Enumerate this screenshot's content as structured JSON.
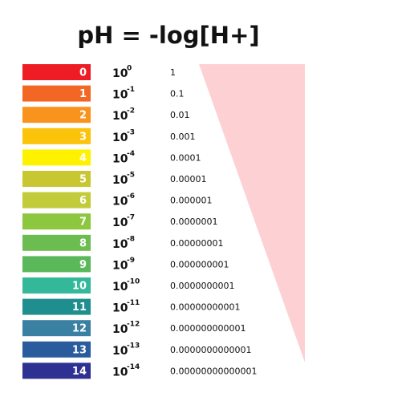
{
  "title": "pH = -log[H+]",
  "rows": [
    {
      "ph": "0",
      "color": "#ee1c25",
      "base": "10",
      "exponent": "0",
      "concentration": "1"
    },
    {
      "ph": "1",
      "color": "#f26724",
      "base": "10",
      "exponent": "-1",
      "concentration": "0.1"
    },
    {
      "ph": "2",
      "color": "#f8931d",
      "base": "10",
      "exponent": "-2",
      "concentration": "0.01"
    },
    {
      "ph": "3",
      "color": "#fcc30b",
      "base": "10",
      "exponent": "-3",
      "concentration": "0.001"
    },
    {
      "ph": "4",
      "color": "#fff200",
      "base": "10",
      "exponent": "-4",
      "concentration": "0.0001"
    },
    {
      "ph": "5",
      "color": "#c8c732",
      "base": "10",
      "exponent": "-5",
      "concentration": "0.00001"
    },
    {
      "ph": "6",
      "color": "#c2cc3a",
      "base": "10",
      "exponent": "-6",
      "concentration": "0.000001"
    },
    {
      "ph": "7",
      "color": "#8dc63f",
      "base": "10",
      "exponent": "-7",
      "concentration": "0.0000001"
    },
    {
      "ph": "8",
      "color": "#6cbd50",
      "base": "10",
      "exponent": "-8",
      "concentration": "0.00000001"
    },
    {
      "ph": "9",
      "color": "#5ab85a",
      "base": "10",
      "exponent": "-9",
      "concentration": "0.000000001"
    },
    {
      "ph": "10",
      "color": "#33b89a",
      "base": "10",
      "exponent": "-10",
      "concentration": "0.0000000001"
    },
    {
      "ph": "11",
      "color": "#1e8e8e",
      "base": "10",
      "exponent": "-11",
      "concentration": "0.00000000001"
    },
    {
      "ph": "12",
      "color": "#3a80a2",
      "base": "10",
      "exponent": "-12",
      "concentration": "0.000000000001"
    },
    {
      "ph": "13",
      "color": "#2a5b9c",
      "base": "10",
      "exponent": "-13",
      "concentration": "0.0000000000001"
    },
    {
      "ph": "14",
      "color": "#2e3192",
      "base": "10",
      "exponent": "-14",
      "concentration": "0.00000000000001"
    }
  ]
}
